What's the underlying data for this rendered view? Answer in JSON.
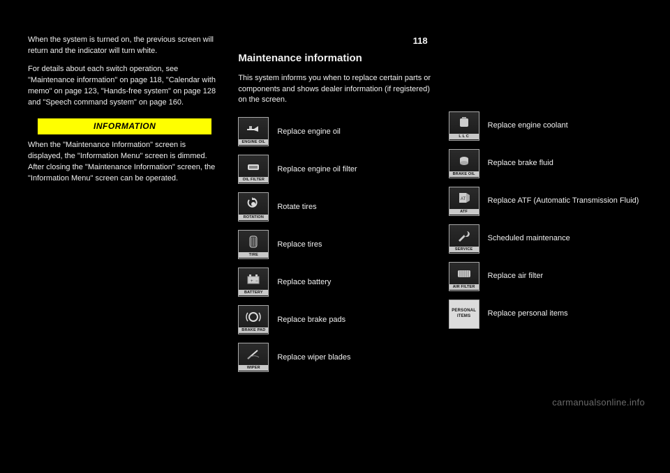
{
  "page_number": "118",
  "section_heading": "Maintenance information",
  "watermark": "carmanualsonline.info",
  "col1": {
    "p1": "When the system is turned on, the previous screen will return and the indicator will turn white.",
    "p2": "For details about each switch operation, see \"Maintenance information\" on page 118, \"Calendar with memo\" on page 123, \"Hands-free system\" on page 128 and \"Speech command system\" on page 160.",
    "info_label": "INFORMATION",
    "info_body": "When the \"Maintenance Information\" screen is displayed, the \"Information Menu\" screen is dimmed. After closing the \"Maintenance Information\" screen, the \"Information Menu\" screen can be operated."
  },
  "col2": {
    "intro": "This system informs you when to replace certain parts or components and shows dealer information (if registered) on the screen.",
    "items": [
      {
        "caption": "ENGINE OIL",
        "label": "Replace engine oil",
        "glyph": "oil-can"
      },
      {
        "caption": "OIL FILTER",
        "label": "Replace engine oil filter",
        "glyph": "filter"
      },
      {
        "caption": "ROTATION",
        "label": "Rotate tires",
        "glyph": "rotation"
      },
      {
        "caption": "TIRE",
        "label": "Replace tires",
        "glyph": "tire"
      },
      {
        "caption": "BATTERY",
        "label": "Replace battery",
        "glyph": "battery"
      },
      {
        "caption": "BRAKE PAD",
        "label": "Replace brake pads",
        "glyph": "brake"
      },
      {
        "caption": "WIPER",
        "label": "Replace wiper blades",
        "glyph": "wiper"
      }
    ]
  },
  "col3": {
    "items": [
      {
        "caption": "L L C",
        "label": "Replace engine coolant",
        "glyph": "coolant"
      },
      {
        "caption": "BRAKE OIL",
        "label": "Replace brake fluid",
        "glyph": "brake-oil"
      },
      {
        "caption": "ATF",
        "label": "Replace ATF (Automatic Transmission Fluid)",
        "glyph": "atf"
      },
      {
        "caption": "SERVICE",
        "label": "Scheduled maintenance",
        "glyph": "service"
      },
      {
        "caption": "AIR FILTER",
        "label": "Replace air filter",
        "glyph": "air-filter"
      },
      {
        "caption": "PERSONAL\nITEMS",
        "label": "Replace personal items",
        "glyph": "personal",
        "personal": true
      }
    ]
  },
  "colors": {
    "bg": "#000000",
    "text": "#ffffff",
    "info_bg": "#ffff00",
    "info_text": "#000000",
    "icon_border": "#aaaaaa",
    "icon_caption_bg": "#c8c8c8",
    "watermark": "#6a6a6a"
  }
}
